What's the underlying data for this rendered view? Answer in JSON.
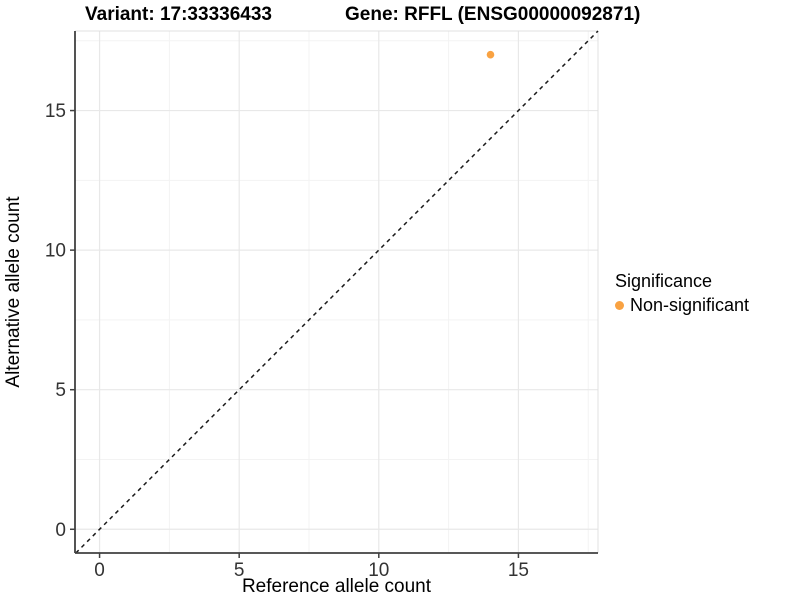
{
  "titles": {
    "variant": "Variant: 17:33336433",
    "gene": "Gene: RFFL (ENSG00000092871)"
  },
  "chart_data": {
    "type": "scatter",
    "xlabel": "Reference allele count",
    "ylabel": "Alternative allele count",
    "xlim": [
      -0.88,
      17.85
    ],
    "ylim": [
      -0.85,
      17.85
    ],
    "x_ticks": [
      0,
      5,
      10,
      15
    ],
    "y_ticks": [
      0,
      5,
      10,
      15
    ],
    "x_minor_ticks": [
      2.5,
      7.5,
      12.5,
      17.5
    ],
    "y_minor_ticks": [
      2.5,
      7.5,
      12.5,
      17.5
    ],
    "grid": {
      "major_color": "#E8E8E8",
      "minor_color": "#F3F3F3",
      "background": "#FFFFFF"
    },
    "axis_line_color": "#404040",
    "tick_label_color": "#333333",
    "identity_line": {
      "slope": 1,
      "intercept": 0,
      "style": "dashed",
      "color": "#1A1A1A"
    },
    "points": [
      {
        "x": 14,
        "y": 17,
        "group": "Non-significant"
      }
    ],
    "point_color": "#F9A242",
    "legend": {
      "title": "Significance",
      "position": "right",
      "items": [
        {
          "label": "Non-significant",
          "color": "#F9A242"
        }
      ]
    }
  }
}
